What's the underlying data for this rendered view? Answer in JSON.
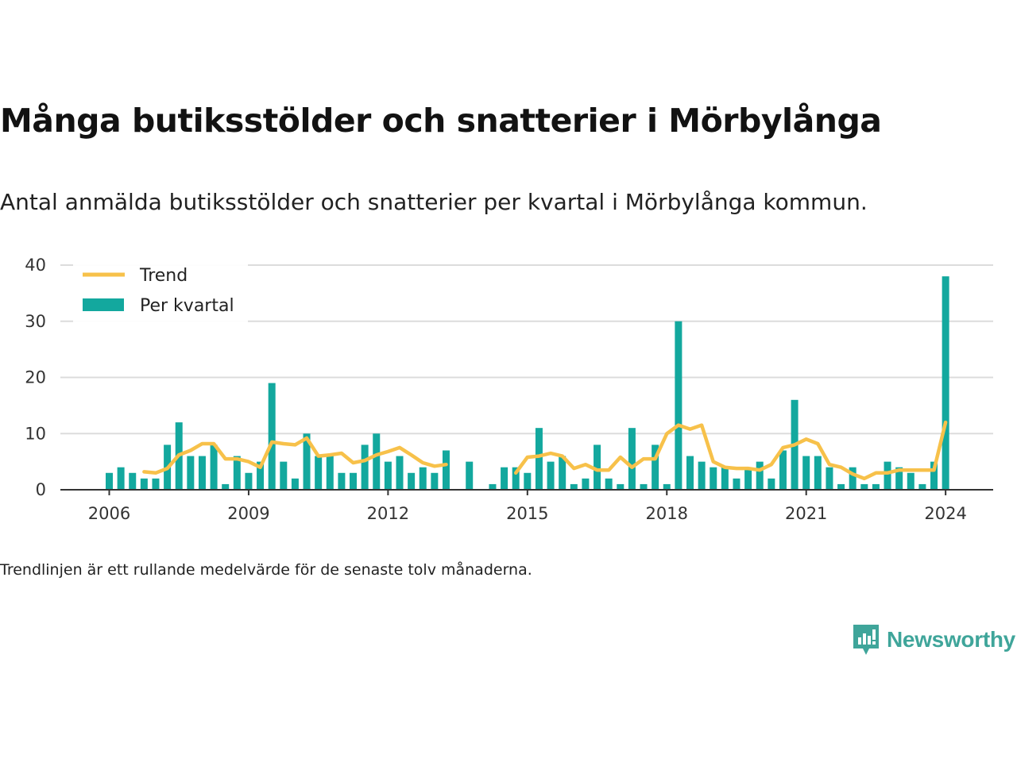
{
  "title": "Många butiksstölder och snatterier i Mörbylånga",
  "subtitle": "Antal anmälda butiksstölder och snatterier per kvartal i Mörbylånga kommun.",
  "note": "Trendlinjen är ett rullande medelvärde för de senaste tolv månaderna.",
  "brand": {
    "name": "Newsworthy",
    "color": "#3fa59a",
    "icon": "newsworthy-logo-icon"
  },
  "chart_data": {
    "type": "bar",
    "title": "Många butiksstölder och snatterier i Mörbylånga",
    "subtitle": "Antal anmälda butiksstölder och snatterier per kvartal i Mörbylånga kommun.",
    "xlabel": "",
    "ylabel": "",
    "ylim": [
      0,
      40
    ],
    "yticks": [
      "0",
      "10",
      "20",
      "30",
      "40"
    ],
    "xticks": [
      "2006",
      "2009",
      "2012",
      "2015",
      "2018",
      "2021",
      "2024"
    ],
    "grid": true,
    "legend_position": "top-left",
    "colors": {
      "bars": "#13a89e",
      "trend": "#f7c14a"
    },
    "legend": [
      "Trend",
      "Per kvartal"
    ],
    "categories": [
      "2006Q1",
      "2006Q2",
      "2006Q3",
      "2006Q4",
      "2007Q1",
      "2007Q2",
      "2007Q3",
      "2007Q4",
      "2008Q1",
      "2008Q2",
      "2008Q3",
      "2008Q4",
      "2009Q1",
      "2009Q2",
      "2009Q3",
      "2009Q4",
      "2010Q1",
      "2010Q2",
      "2010Q3",
      "2010Q4",
      "2011Q1",
      "2011Q2",
      "2011Q3",
      "2011Q4",
      "2012Q1",
      "2012Q2",
      "2012Q3",
      "2012Q4",
      "2013Q1",
      "2013Q2",
      "2013Q3",
      "2013Q4",
      "2014Q1",
      "2014Q2",
      "2014Q3",
      "2014Q4",
      "2015Q1",
      "2015Q2",
      "2015Q3",
      "2015Q4",
      "2016Q1",
      "2016Q2",
      "2016Q3",
      "2016Q4",
      "2017Q1",
      "2017Q2",
      "2017Q3",
      "2017Q4",
      "2018Q1",
      "2018Q2",
      "2018Q3",
      "2018Q4",
      "2019Q1",
      "2019Q2",
      "2019Q3",
      "2019Q4",
      "2020Q1",
      "2020Q2",
      "2020Q3",
      "2020Q4",
      "2021Q1",
      "2021Q2",
      "2021Q3",
      "2021Q4",
      "2022Q1",
      "2022Q2",
      "2022Q3",
      "2022Q4",
      "2023Q1",
      "2023Q2",
      "2023Q3",
      "2023Q4",
      "2024Q1"
    ],
    "series": [
      {
        "name": "Per kvartal",
        "type": "bar",
        "values": [
          3,
          4,
          3,
          2,
          2,
          8,
          12,
          6,
          6,
          8,
          1,
          6,
          3,
          5,
          19,
          5,
          2,
          10,
          6,
          6,
          3,
          3,
          8,
          10,
          5,
          6,
          3,
          4,
          3,
          7,
          null,
          5,
          null,
          1,
          4,
          4,
          3,
          11,
          5,
          6,
          1,
          2,
          8,
          2,
          1,
          11,
          1,
          8,
          1,
          30,
          6,
          5,
          4,
          4,
          2,
          4,
          5,
          2,
          7,
          16,
          6,
          6,
          4,
          1,
          4,
          1,
          1,
          5,
          4,
          3,
          1,
          5,
          38
        ]
      },
      {
        "name": "Trend",
        "type": "line",
        "values": [
          null,
          null,
          null,
          3.2,
          3.0,
          3.8,
          6.2,
          7.0,
          8.2,
          8.2,
          5.5,
          5.5,
          5.0,
          4.0,
          8.5,
          8.2,
          8.0,
          9.2,
          6.0,
          6.2,
          6.5,
          4.8,
          5.2,
          6.2,
          6.8,
          7.5,
          6.2,
          4.8,
          4.2,
          4.5,
          null,
          null,
          null,
          null,
          null,
          3.0,
          5.8,
          6.0,
          6.5,
          6.0,
          3.8,
          4.5,
          3.5,
          3.5,
          5.8,
          4.0,
          5.5,
          5.5,
          10.0,
          11.5,
          10.8,
          11.5,
          5.0,
          4.0,
          3.8,
          3.8,
          3.5,
          4.5,
          7.5,
          8.0,
          9.0,
          8.2,
          4.5,
          4.0,
          2.8,
          2.0,
          3.0,
          3.0,
          3.5,
          3.5,
          3.5,
          3.5,
          12.0
        ]
      }
    ]
  }
}
